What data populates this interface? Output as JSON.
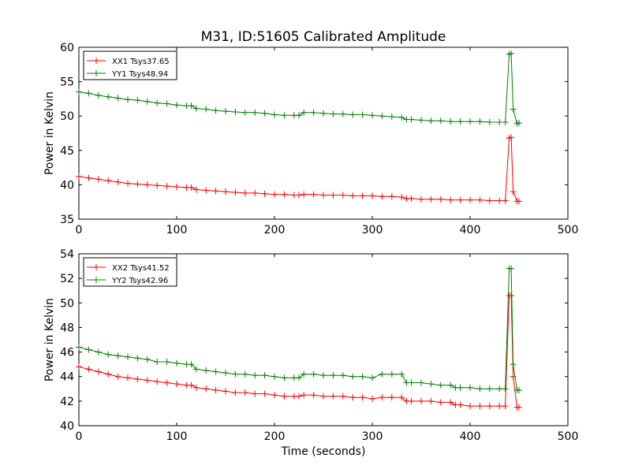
{
  "title": "M31, ID:51605 Calibrated Amplitude",
  "xlabel": "Time (seconds)",
  "colors": {
    "xx": "#ff0000",
    "yy": "#008000"
  },
  "chart_data": [
    {
      "type": "line",
      "title": "M31, ID:51605 Calibrated Amplitude",
      "xlabel": "",
      "ylabel": "Power in Kelvin",
      "xlim": [
        0,
        500
      ],
      "ylim": [
        35,
        60
      ],
      "xticks": [
        "0",
        "100",
        "200",
        "300",
        "400",
        "500"
      ],
      "yticks": [
        "35",
        "40",
        "45",
        "50",
        "55",
        "60"
      ],
      "grid": false,
      "legend_position": "top-left",
      "marker": "+",
      "series": [
        {
          "name": "XX1 Tsys37.65",
          "color": "#ff0000",
          "x": [
            0,
            10,
            20,
            30,
            40,
            50,
            60,
            70,
            80,
            90,
            100,
            110,
            115,
            120,
            130,
            140,
            150,
            160,
            170,
            180,
            190,
            200,
            210,
            220,
            225,
            230,
            240,
            250,
            260,
            270,
            280,
            290,
            300,
            310,
            320,
            330,
            335,
            340,
            350,
            360,
            370,
            380,
            390,
            400,
            410,
            420,
            430,
            436,
            440,
            442,
            444,
            448,
            450
          ],
          "values": [
            41.2,
            41.0,
            40.8,
            40.6,
            40.4,
            40.2,
            40.1,
            40.0,
            39.9,
            39.8,
            39.7,
            39.6,
            39.6,
            39.3,
            39.2,
            39.1,
            39.0,
            38.9,
            38.8,
            38.8,
            38.7,
            38.6,
            38.6,
            38.5,
            38.5,
            38.6,
            38.6,
            38.5,
            38.5,
            38.5,
            38.4,
            38.4,
            38.4,
            38.3,
            38.3,
            38.2,
            38.0,
            38.0,
            37.9,
            37.9,
            37.9,
            37.8,
            37.8,
            37.8,
            37.8,
            37.7,
            37.7,
            37.7,
            46.8,
            46.9,
            39.0,
            37.6,
            37.6
          ]
        },
        {
          "name": "YY1 Tsys48.94",
          "color": "#008000",
          "x": [
            0,
            10,
            20,
            30,
            40,
            50,
            60,
            70,
            80,
            90,
            100,
            110,
            115,
            120,
            130,
            140,
            150,
            160,
            170,
            180,
            190,
            200,
            210,
            220,
            225,
            230,
            240,
            250,
            260,
            270,
            280,
            290,
            300,
            310,
            320,
            330,
            335,
            340,
            350,
            360,
            370,
            380,
            390,
            400,
            410,
            420,
            430,
            436,
            440,
            442,
            444,
            448,
            450
          ],
          "values": [
            53.5,
            53.3,
            53.0,
            52.8,
            52.6,
            52.4,
            52.3,
            52.1,
            51.9,
            51.8,
            51.6,
            51.5,
            51.5,
            51.1,
            51.0,
            50.8,
            50.7,
            50.6,
            50.5,
            50.5,
            50.4,
            50.2,
            50.1,
            50.1,
            50.1,
            50.5,
            50.5,
            50.4,
            50.3,
            50.3,
            50.2,
            50.2,
            50.1,
            50.0,
            49.9,
            49.8,
            49.5,
            49.5,
            49.4,
            49.3,
            49.3,
            49.2,
            49.2,
            49.2,
            49.2,
            49.1,
            49.1,
            49.1,
            59.0,
            59.1,
            51.0,
            48.9,
            49.0
          ]
        }
      ]
    },
    {
      "type": "line",
      "title": "",
      "xlabel": "Time (seconds)",
      "ylabel": "Power in Kelvin",
      "xlim": [
        0,
        500
      ],
      "ylim": [
        40,
        54
      ],
      "xticks": [
        "0",
        "100",
        "200",
        "300",
        "400",
        "500"
      ],
      "yticks": [
        "40",
        "42",
        "44",
        "46",
        "48",
        "50",
        "52",
        "54"
      ],
      "grid": false,
      "legend_position": "top-left",
      "marker": "+",
      "series": [
        {
          "name": "XX2 Tsys41.52",
          "color": "#ff0000",
          "x": [
            0,
            10,
            20,
            30,
            40,
            50,
            60,
            70,
            80,
            90,
            100,
            110,
            115,
            120,
            130,
            140,
            150,
            160,
            170,
            180,
            190,
            200,
            210,
            220,
            225,
            230,
            240,
            250,
            260,
            270,
            280,
            290,
            300,
            310,
            320,
            330,
            335,
            340,
            350,
            360,
            370,
            380,
            385,
            390,
            400,
            410,
            420,
            430,
            436,
            440,
            442,
            444,
            448,
            450
          ],
          "values": [
            44.8,
            44.6,
            44.4,
            44.2,
            44.0,
            43.9,
            43.8,
            43.7,
            43.6,
            43.5,
            43.4,
            43.3,
            43.3,
            43.1,
            43.0,
            42.9,
            42.8,
            42.7,
            42.7,
            42.6,
            42.6,
            42.5,
            42.4,
            42.4,
            42.4,
            42.5,
            42.5,
            42.4,
            42.4,
            42.4,
            42.3,
            42.3,
            42.2,
            42.3,
            42.3,
            42.3,
            42.0,
            42.0,
            42.0,
            42.0,
            41.9,
            41.9,
            41.7,
            41.7,
            41.6,
            41.6,
            41.6,
            41.6,
            41.6,
            50.6,
            50.6,
            44.0,
            41.5,
            41.5
          ]
        },
        {
          "name": "YY2 Tsys42.96",
          "color": "#008000",
          "x": [
            0,
            10,
            20,
            30,
            40,
            50,
            60,
            70,
            80,
            90,
            100,
            110,
            115,
            120,
            130,
            140,
            150,
            160,
            170,
            180,
            190,
            200,
            210,
            220,
            225,
            230,
            240,
            250,
            260,
            270,
            280,
            290,
            300,
            310,
            320,
            330,
            335,
            340,
            350,
            360,
            370,
            380,
            385,
            390,
            400,
            410,
            420,
            430,
            436,
            440,
            442,
            444,
            448,
            450
          ],
          "values": [
            46.4,
            46.2,
            46.0,
            45.8,
            45.7,
            45.6,
            45.5,
            45.4,
            45.2,
            45.2,
            45.1,
            45.0,
            45.0,
            44.6,
            44.5,
            44.4,
            44.3,
            44.2,
            44.2,
            44.1,
            44.1,
            44.0,
            43.9,
            43.9,
            43.9,
            44.2,
            44.2,
            44.1,
            44.1,
            44.1,
            44.0,
            44.0,
            43.9,
            44.2,
            44.2,
            44.2,
            43.5,
            43.5,
            43.5,
            43.4,
            43.3,
            43.3,
            43.1,
            43.1,
            43.1,
            43.0,
            43.0,
            43.0,
            43.0,
            52.8,
            52.8,
            45.0,
            42.9,
            42.9
          ]
        }
      ]
    }
  ]
}
